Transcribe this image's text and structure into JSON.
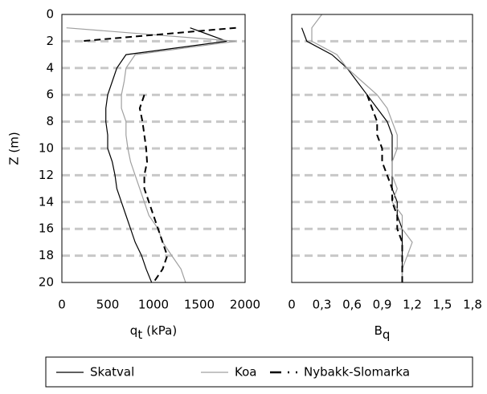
{
  "chart_data": [
    {
      "type": "line",
      "ylabel": "Z (m)",
      "xlabel": "q",
      "xlabel_sub": "t",
      "xlabel_unit": "(kPa)",
      "depth": [
        0,
        1,
        2,
        3,
        4,
        5,
        6,
        7,
        8,
        9,
        10,
        11,
        12,
        13,
        14,
        15,
        16,
        17,
        18,
        19,
        20
      ],
      "xlim": [
        0,
        2000
      ],
      "xticks": [
        0,
        500,
        1000,
        1500,
        2000
      ],
      "ylim": [
        0,
        20
      ],
      "yticks": [
        0,
        2,
        4,
        6,
        8,
        10,
        12,
        14,
        16,
        18,
        20
      ],
      "grid": true,
      "series": [
        {
          "name": "Skatval",
          "color": "#000000",
          "dash": false,
          "values": [
            null,
            1400,
            1800,
            700,
            600,
            550,
            500,
            480,
            480,
            500,
            500,
            550,
            580,
            600,
            650,
            700,
            750,
            800,
            870,
            920,
            980
          ]
        },
        {
          "name": "Koa",
          "color": "#a0a0a0",
          "dash": false,
          "values": [
            null,
            50,
            1900,
            800,
            700,
            680,
            650,
            650,
            700,
            700,
            720,
            750,
            800,
            850,
            900,
            950,
            1050,
            1100,
            1200,
            1300,
            1350
          ]
        },
        {
          "name": "Nybakk-Slomarka",
          "color": "#000000",
          "dash": true,
          "values": [
            null,
            1900,
            200,
            null,
            null,
            null,
            900,
            850,
            880,
            900,
            920,
            930,
            900,
            900,
            950,
            1000,
            1050,
            1100,
            1150,
            1100,
            1000
          ]
        }
      ]
    },
    {
      "type": "line",
      "xlabel": "B",
      "xlabel_sub": "q",
      "depth": [
        0,
        1,
        2,
        3,
        4,
        5,
        6,
        7,
        8,
        9,
        10,
        11,
        12,
        13,
        14,
        15,
        16,
        17,
        18,
        19,
        20
      ],
      "xlim": [
        0,
        1.8
      ],
      "xticks": [
        0,
        {
          "value": 0.3,
          "label": "0,3"
        },
        {
          "value": 0.6,
          "label": "0,6"
        },
        {
          "value": 0.9,
          "label": "0,9"
        },
        {
          "value": 1.2,
          "label": "1,2"
        },
        {
          "value": 1.5,
          "label": "1,5"
        },
        {
          "value": 1.8,
          "label": "1,8"
        }
      ],
      "ylim": [
        0,
        20
      ],
      "yticks": [
        0,
        2,
        4,
        6,
        8,
        10,
        12,
        14,
        16,
        18,
        20
      ],
      "grid": true,
      "series": [
        {
          "color": "#000000",
          "dash": false,
          "values": [
            null,
            0.1,
            0.15,
            0.4,
            0.55,
            0.65,
            0.75,
            0.85,
            0.95,
            1.0,
            1.0,
            1.0,
            1.0,
            1.0,
            1.05,
            1.05,
            1.1,
            1.1,
            1.1,
            1.1,
            1.1
          ]
        },
        {
          "color": "#a0a0a0",
          "dash": false,
          "values": [
            0.3,
            0.2,
            0.2,
            0.45,
            0.55,
            0.7,
            0.85,
            0.95,
            1.0,
            1.05,
            1.05,
            1.0,
            1.0,
            1.05,
            1.0,
            1.1,
            1.1,
            1.2,
            1.15,
            1.1,
            1.1
          ]
        },
        {
          "color": "#000000",
          "dash": true,
          "values": [
            null,
            null,
            null,
            null,
            null,
            null,
            0.75,
            0.8,
            0.85,
            0.85,
            0.9,
            0.9,
            0.95,
            1.0,
            1.0,
            1.05,
            1.05,
            1.1,
            1.1,
            1.1,
            1.1
          ]
        }
      ]
    }
  ]
}
